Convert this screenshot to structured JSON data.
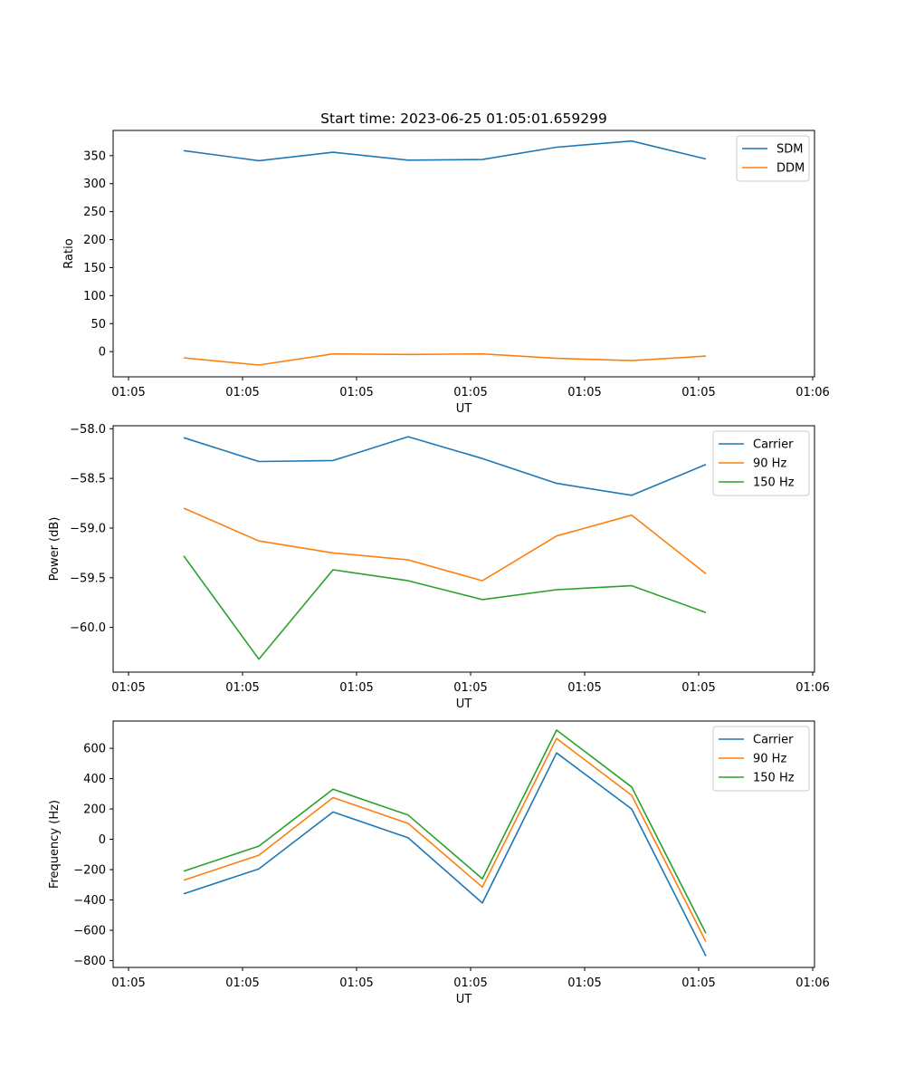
{
  "chart_data": [
    {
      "type": "line",
      "title": "Start time: 2023-06-25 01:05:01.659299",
      "xlabel": "UT",
      "ylabel": "Ratio",
      "x_tick_labels": [
        "01:05",
        "01:05",
        "01:05",
        "01:05",
        "01:05",
        "01:05",
        "01:06"
      ],
      "yticks": [
        0,
        50,
        100,
        150,
        200,
        250,
        300,
        350
      ],
      "ylim": [
        -45,
        395
      ],
      "legend_position": "upper right",
      "series": [
        {
          "name": "SDM",
          "color": "#1f77b4",
          "values": [
            359,
            341,
            356,
            342,
            343,
            365,
            376,
            344
          ]
        },
        {
          "name": "DDM",
          "color": "#ff7f0e",
          "values": [
            -11,
            -24,
            -4,
            -5,
            -4,
            -12,
            -16,
            -8
          ]
        }
      ]
    },
    {
      "type": "line",
      "title": "",
      "xlabel": "UT",
      "ylabel": "Power (dB)",
      "x_tick_labels": [
        "01:05",
        "01:05",
        "01:05",
        "01:05",
        "01:05",
        "01:05",
        "01:06"
      ],
      "yticks": [
        -58.0,
        -58.5,
        -59.0,
        -59.5,
        -60.0
      ],
      "ytick_labels": [
        "−58.0",
        "−58.5",
        "−59.0",
        "−59.5",
        "−60.0"
      ],
      "ylim": [
        -60.45,
        -57.97
      ],
      "legend_position": "upper right",
      "series": [
        {
          "name": "Carrier",
          "color": "#1f77b4",
          "values": [
            -58.09,
            -58.33,
            -58.32,
            -58.08,
            -58.3,
            -58.55,
            -58.67,
            -58.36
          ]
        },
        {
          "name": "90 Hz",
          "color": "#ff7f0e",
          "values": [
            -58.8,
            -59.13,
            -59.25,
            -59.32,
            -59.53,
            -59.08,
            -58.87,
            -59.46
          ]
        },
        {
          "name": "150 Hz",
          "color": "#2ca02c",
          "values": [
            -59.28,
            -60.32,
            -59.42,
            -59.53,
            -59.72,
            -59.62,
            -59.58,
            -59.85
          ]
        }
      ]
    },
    {
      "type": "line",
      "title": "",
      "xlabel": "UT",
      "ylabel": "Frequency (Hz)",
      "x_tick_labels": [
        "01:05",
        "01:05",
        "01:05",
        "01:05",
        "01:05",
        "01:05",
        "01:06"
      ],
      "yticks": [
        -800,
        -600,
        -400,
        -200,
        0,
        200,
        400,
        600
      ],
      "ytick_labels": [
        "−800",
        "−600",
        "−400",
        "−200",
        "0",
        "200",
        "400",
        "600"
      ],
      "ylim": [
        -845,
        780
      ],
      "legend_position": "upper right",
      "series": [
        {
          "name": "Carrier",
          "color": "#1f77b4",
          "values": [
            -360,
            -195,
            180,
            10,
            -420,
            570,
            200,
            -770
          ]
        },
        {
          "name": "90 Hz",
          "color": "#ff7f0e",
          "values": [
            -270,
            -105,
            275,
            105,
            -315,
            665,
            290,
            -675
          ]
        },
        {
          "name": "150 Hz",
          "color": "#2ca02c",
          "values": [
            -210,
            -45,
            330,
            160,
            -260,
            720,
            345,
            -620
          ]
        }
      ]
    }
  ]
}
